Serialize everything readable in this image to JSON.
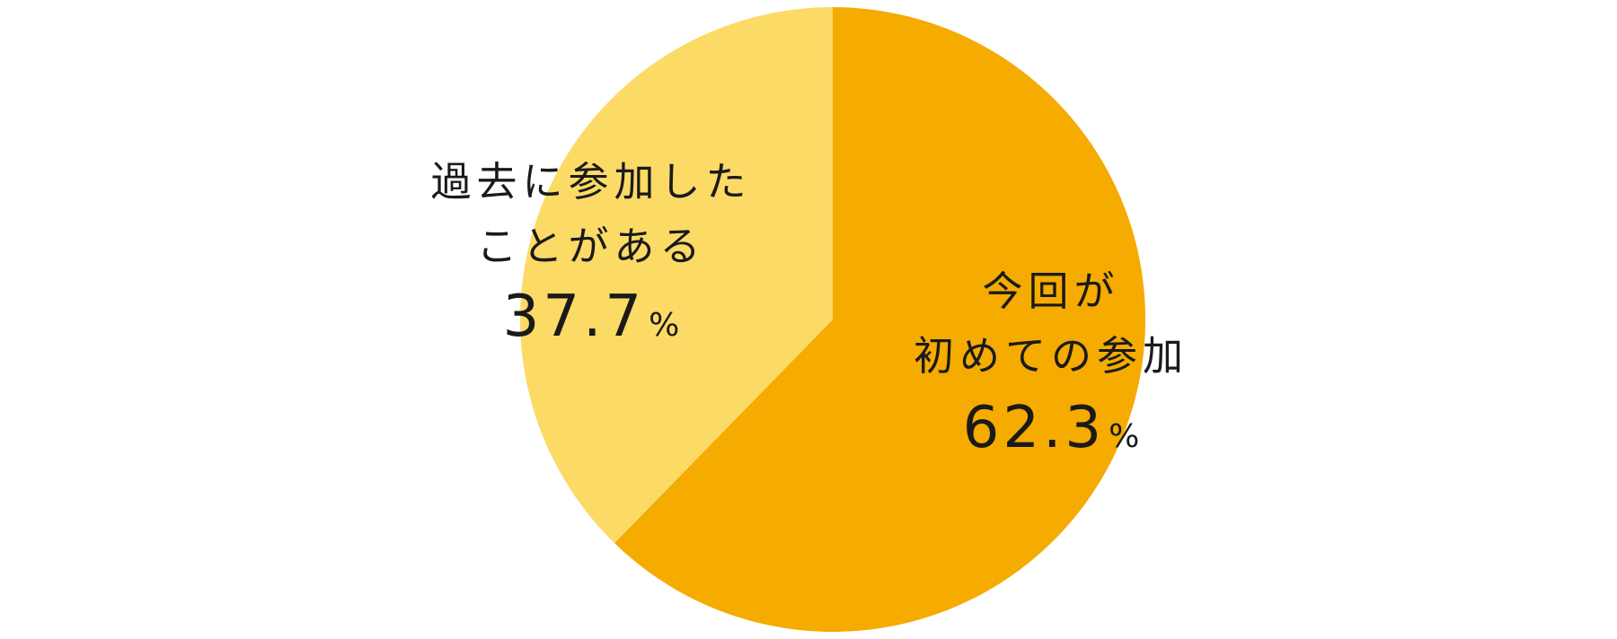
{
  "chart_data": {
    "type": "pie",
    "start_angle_deg": 0,
    "direction": "clockwise",
    "slices": [
      {
        "label_lines": [
          "今回が",
          "初めての参加"
        ],
        "value": 62.3,
        "value_text": "62.3",
        "unit": "%",
        "color": "#F5AB00"
      },
      {
        "label_lines": [
          "過去に参加した",
          "ことがある"
        ],
        "value": 37.7,
        "value_text": "37.7",
        "unit": "%",
        "color": "#FCDA66"
      }
    ]
  }
}
